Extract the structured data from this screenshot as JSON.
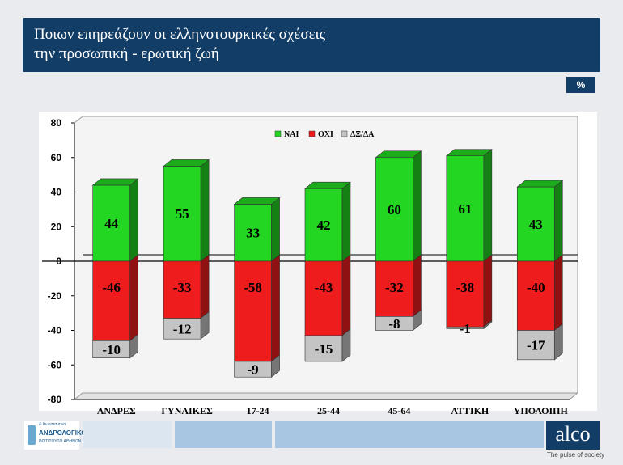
{
  "header": {
    "title_line1": "Ποιων επηρεάζουν οι ελληνοτουρκικές σχέσεις",
    "title_line2": "την προσωπική - ερωτική ζωή",
    "unit_badge": "%"
  },
  "footer": {
    "logo_small": "& Κωνσταντίνο",
    "logo_name": "ΑΝΔΡΟΛΟΓΙΚΟ",
    "logo_sub": "ΙΝΣΤΙΤΟΥΤΟ ΑΘΗΝΩΝ",
    "brand": "alco",
    "tagline": "The pulse of society"
  },
  "colors": {
    "header_bg": "#123d66",
    "yes": "#22d622",
    "no": "#ee1c1c",
    "dk": "#c4c4c4"
  },
  "chart_data": {
    "type": "bar",
    "stacked": true,
    "categories": [
      "ΑΝΔΡΕΣ",
      "ΓΥΝΑΙΚΕΣ",
      "17-24",
      "25-44",
      "45-64",
      "ΑΤΤΙΚΗ",
      "ΥΠΟΛΟΙΠΗ"
    ],
    "series": [
      {
        "name": "ΝΑΙ",
        "color": "#22d622",
        "values": [
          44,
          55,
          33,
          42,
          60,
          61,
          43
        ]
      },
      {
        "name": "ΟΧΙ",
        "color": "#ee1c1c",
        "values": [
          -46,
          -33,
          -58,
          -43,
          -32,
          -38,
          -40
        ]
      },
      {
        "name": "ΔΞ/ΔΑ",
        "color": "#c4c4c4",
        "values": [
          -10,
          -12,
          -9,
          -15,
          -8,
          -1,
          -17
        ]
      }
    ],
    "ylim": [
      -80,
      80
    ],
    "yticks": [
      "80",
      "60",
      "40",
      "20",
      "0",
      "-20",
      "-40",
      "-60",
      "-80"
    ],
    "legend_position": "top-center",
    "grid": false
  }
}
